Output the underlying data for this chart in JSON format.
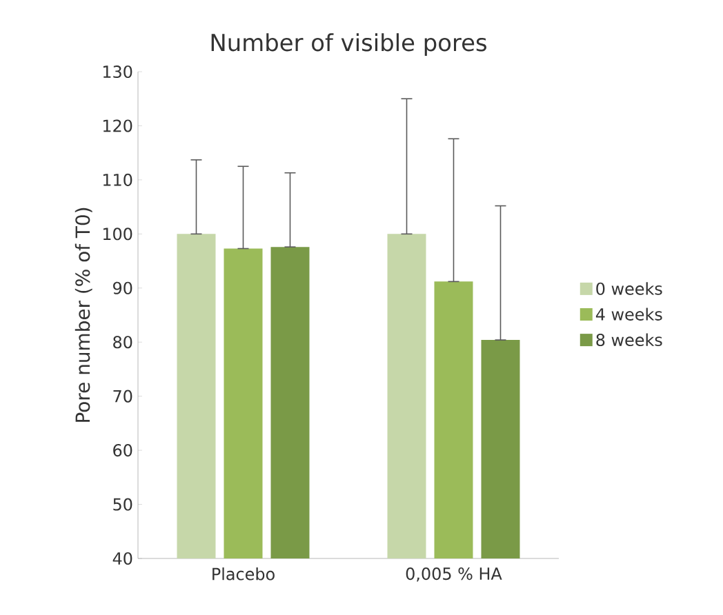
{
  "chart_data": {
    "type": "bar",
    "title": "Number of visible pores",
    "ylabel": "Pore number (% of T0)",
    "categories": [
      "Placebo",
      "0,005 % HA"
    ],
    "series": [
      {
        "name": "0 weeks",
        "color": "#c6d7a9",
        "values": [
          100,
          100
        ],
        "errors": [
          [
            100,
            113.7
          ],
          [
            100,
            125
          ]
        ]
      },
      {
        "name": "4 weeks",
        "color": "#9bbb59",
        "values": [
          97.3,
          91.2
        ],
        "errors": [
          [
            97.3,
            112.5
          ],
          [
            91.2,
            117.6
          ]
        ]
      },
      {
        "name": "8 weeks",
        "color": "#7a9a47",
        "values": [
          97.6,
          80.4
        ],
        "errors": [
          [
            97.6,
            111.3
          ],
          [
            80.4,
            105.2
          ]
        ]
      }
    ],
    "ylim": [
      40,
      130
    ],
    "yticks": [
      40,
      50,
      60,
      70,
      80,
      90,
      100,
      110,
      120,
      130
    ],
    "grid": false,
    "legend": "right"
  }
}
